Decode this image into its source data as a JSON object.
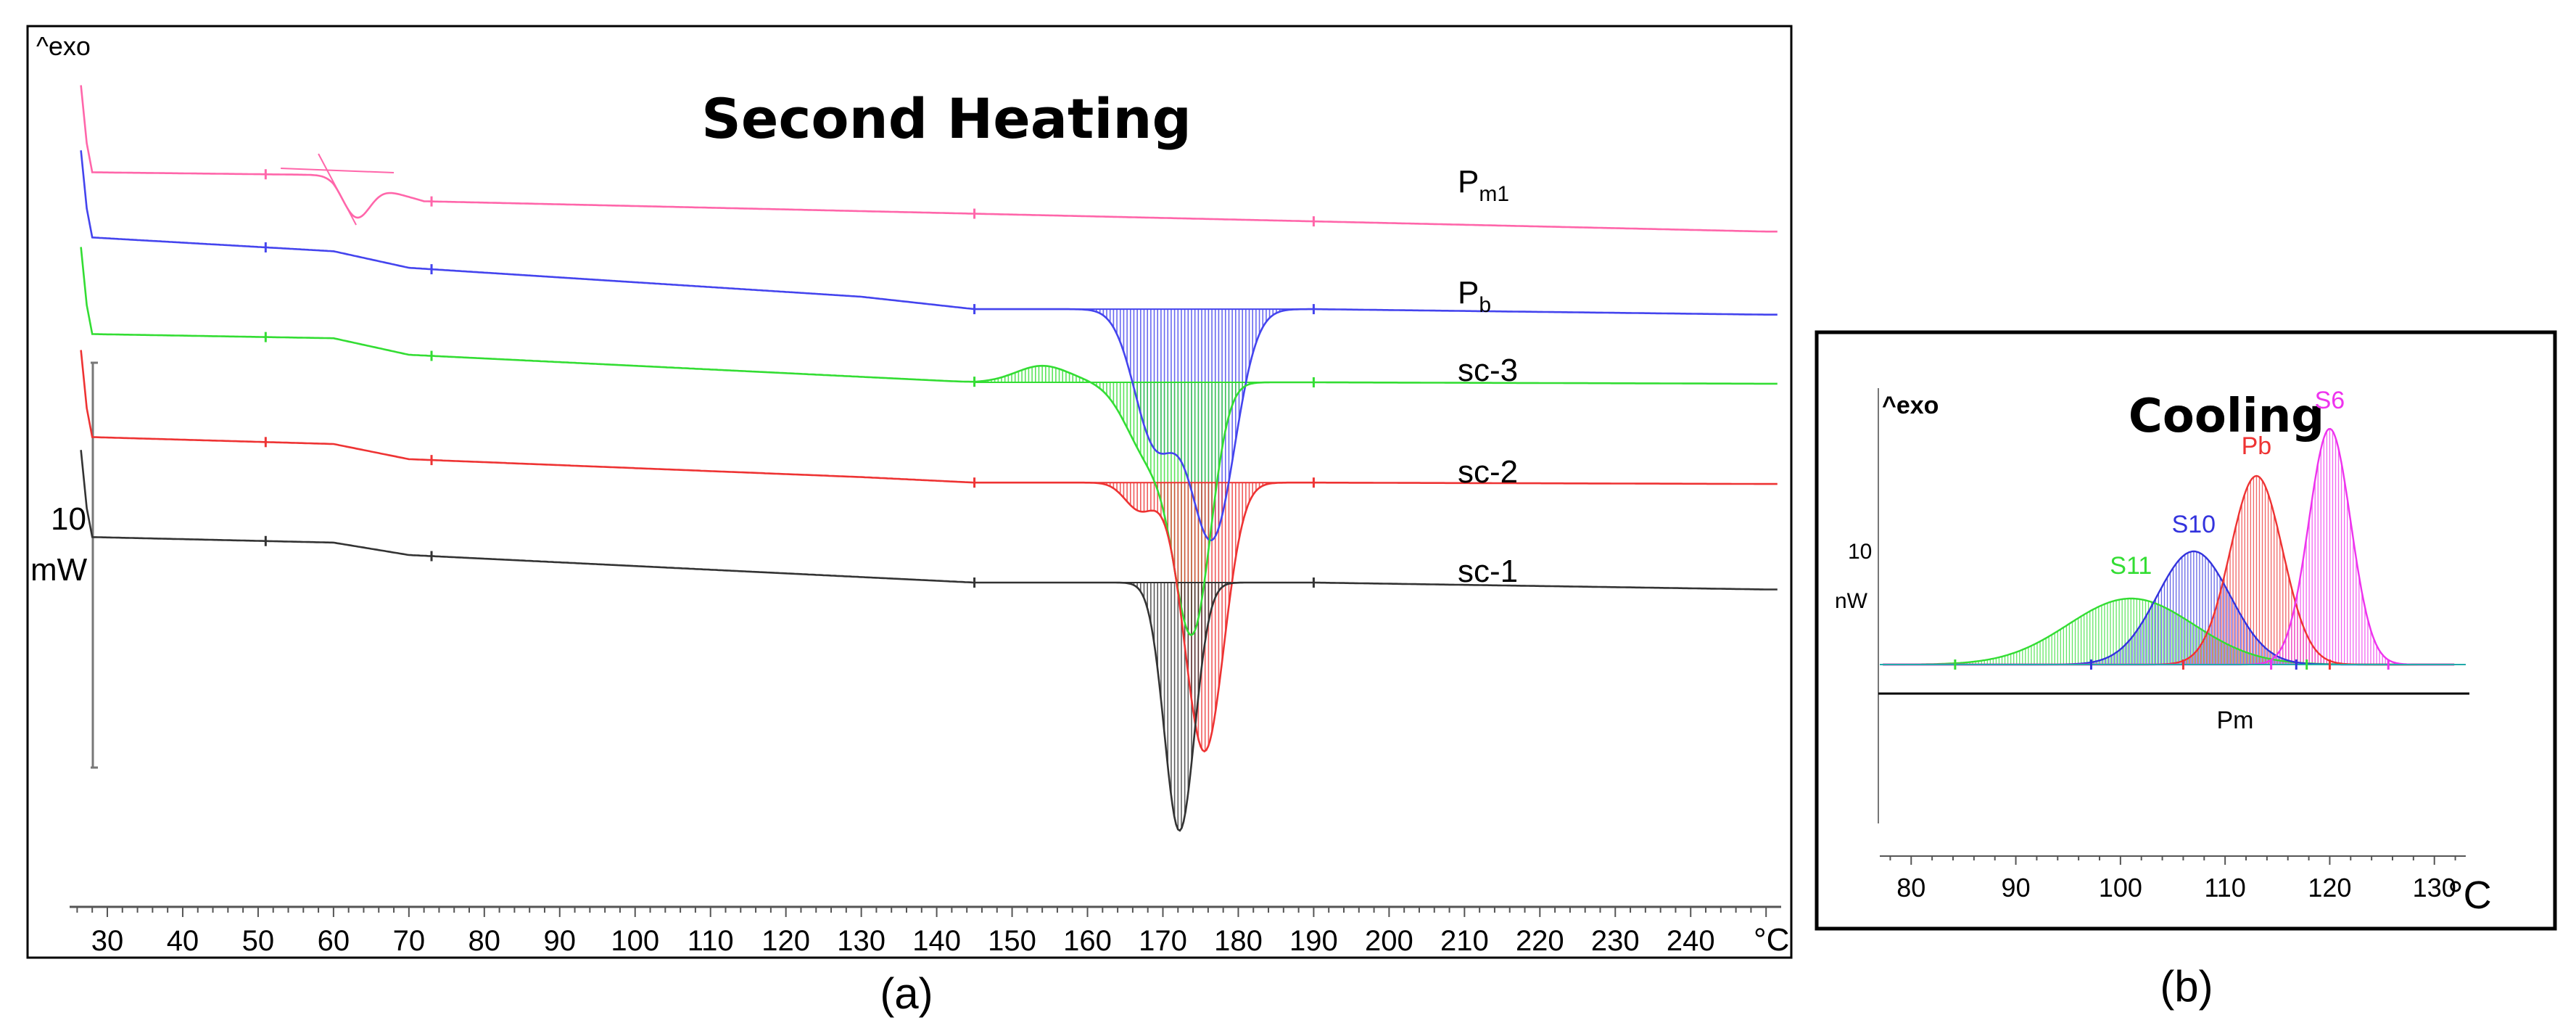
{
  "chart_data": [
    {
      "type": "line",
      "title": "Second Heating",
      "caption": "(a)",
      "ylabel_top": "^exo",
      "scale_bar_value": "10",
      "scale_bar_unit": "mW",
      "x_unit": "°C",
      "xlim": [
        25,
        252
      ],
      "x_ticks": [
        30,
        40,
        50,
        60,
        70,
        80,
        90,
        100,
        110,
        120,
        130,
        140,
        150,
        160,
        170,
        180,
        190,
        200,
        210,
        220,
        230,
        240
      ],
      "integration_limits": [
        145,
        190
      ],
      "series": [
        {
          "name": "P_m1",
          "label_main": "P",
          "label_sub": "m1",
          "color": "#ff66aa",
          "baseline": [
            [
              28,
              -0.5
            ],
            [
              60,
              -0.7
            ],
            [
              72,
              -2.6
            ],
            [
              250,
              -4.8
            ]
          ],
          "peaks": [
            {
              "center": 63,
              "depth": 2.6,
              "width": 1.8
            }
          ],
          "hatch": false
        },
        {
          "name": "P_b",
          "label_main": "P",
          "label_sub": "b",
          "color": "#4444ee",
          "baseline": [
            [
              28,
              1.3
            ],
            [
              60,
              0.3
            ],
            [
              70,
              -0.9
            ],
            [
              130,
              -3.0
            ],
            [
              145,
              -3.9
            ],
            [
              190,
              -3.9
            ],
            [
              250,
              -4.3
            ]
          ],
          "peaks": [
            {
              "center": 176.5,
              "depth": 16.5,
              "width": 3.0
            },
            {
              "center": 169,
              "depth": 9.5,
              "width": 2.8
            }
          ],
          "hatch": true
        },
        {
          "name": "sc-3",
          "label_main": "sc-3",
          "label_sub": "",
          "color": "#33dd33",
          "baseline": [
            [
              28,
              0.5
            ],
            [
              60,
              0.2
            ],
            [
              70,
              -1.0
            ],
            [
              145,
              -3.0
            ],
            [
              190,
              -3.0
            ],
            [
              250,
              -3.1
            ]
          ],
          "peaks": [
            {
              "center": 168.5,
              "depth": 5.5,
              "width": 3.2
            },
            {
              "center": 174,
              "depth": 17.0,
              "width": 2.4
            },
            {
              "center": 154,
              "depth": -1.2,
              "width": 3.5
            }
          ],
          "hatch": true
        },
        {
          "name": "sc-2",
          "label_main": "sc-2",
          "label_sub": "",
          "color": "#ee3333",
          "baseline": [
            [
              28,
              0.5
            ],
            [
              60,
              0.0
            ],
            [
              70,
              -1.1
            ],
            [
              130,
              -2.4
            ],
            [
              145,
              -2.8
            ],
            [
              190,
              -2.8
            ],
            [
              250,
              -2.9
            ]
          ],
          "peaks": [
            {
              "center": 175.5,
              "depth": 19.5,
              "width": 2.6
            },
            {
              "center": 167,
              "depth": 2.0,
              "width": 2.0
            }
          ],
          "hatch": true
        },
        {
          "name": "sc-1",
          "label_main": "sc-1",
          "label_sub": "",
          "color": "#333333",
          "baseline": [
            [
              28,
              0.3
            ],
            [
              60,
              -0.1
            ],
            [
              70,
              -1.0
            ],
            [
              130,
              -2.6
            ],
            [
              145,
              -3.0
            ],
            [
              190,
              -3.0
            ],
            [
              250,
              -3.5
            ]
          ],
          "peaks": [
            {
              "center": 172.2,
              "depth": 18.0,
              "width": 2.0
            }
          ],
          "hatch": true
        }
      ]
    },
    {
      "type": "line",
      "title": "Cooling",
      "caption": "(b)",
      "ylabel_top": "^exo",
      "scale_bar_value": "10",
      "scale_bar_unit": "nW",
      "x_unit": "°C",
      "xlim": [
        77,
        133
      ],
      "x_ticks": [
        80,
        90,
        100,
        110,
        120,
        130
      ],
      "curve_label": "Pm",
      "series": [
        {
          "name": "S11",
          "color": "#33dd33",
          "peak_center": 101,
          "peak_height": 3.5,
          "peak_width": 6
        },
        {
          "name": "S10",
          "color": "#3333dd",
          "peak_center": 107,
          "peak_height": 6.0,
          "peak_width": 3.5
        },
        {
          "name": "Pb",
          "color": "#ee3333",
          "peak_center": 113,
          "peak_height": 10.0,
          "peak_width": 2.5
        },
        {
          "name": "S6",
          "color": "#ee33ee",
          "peak_center": 120,
          "peak_height": 12.5,
          "peak_width": 2.0
        }
      ]
    }
  ]
}
